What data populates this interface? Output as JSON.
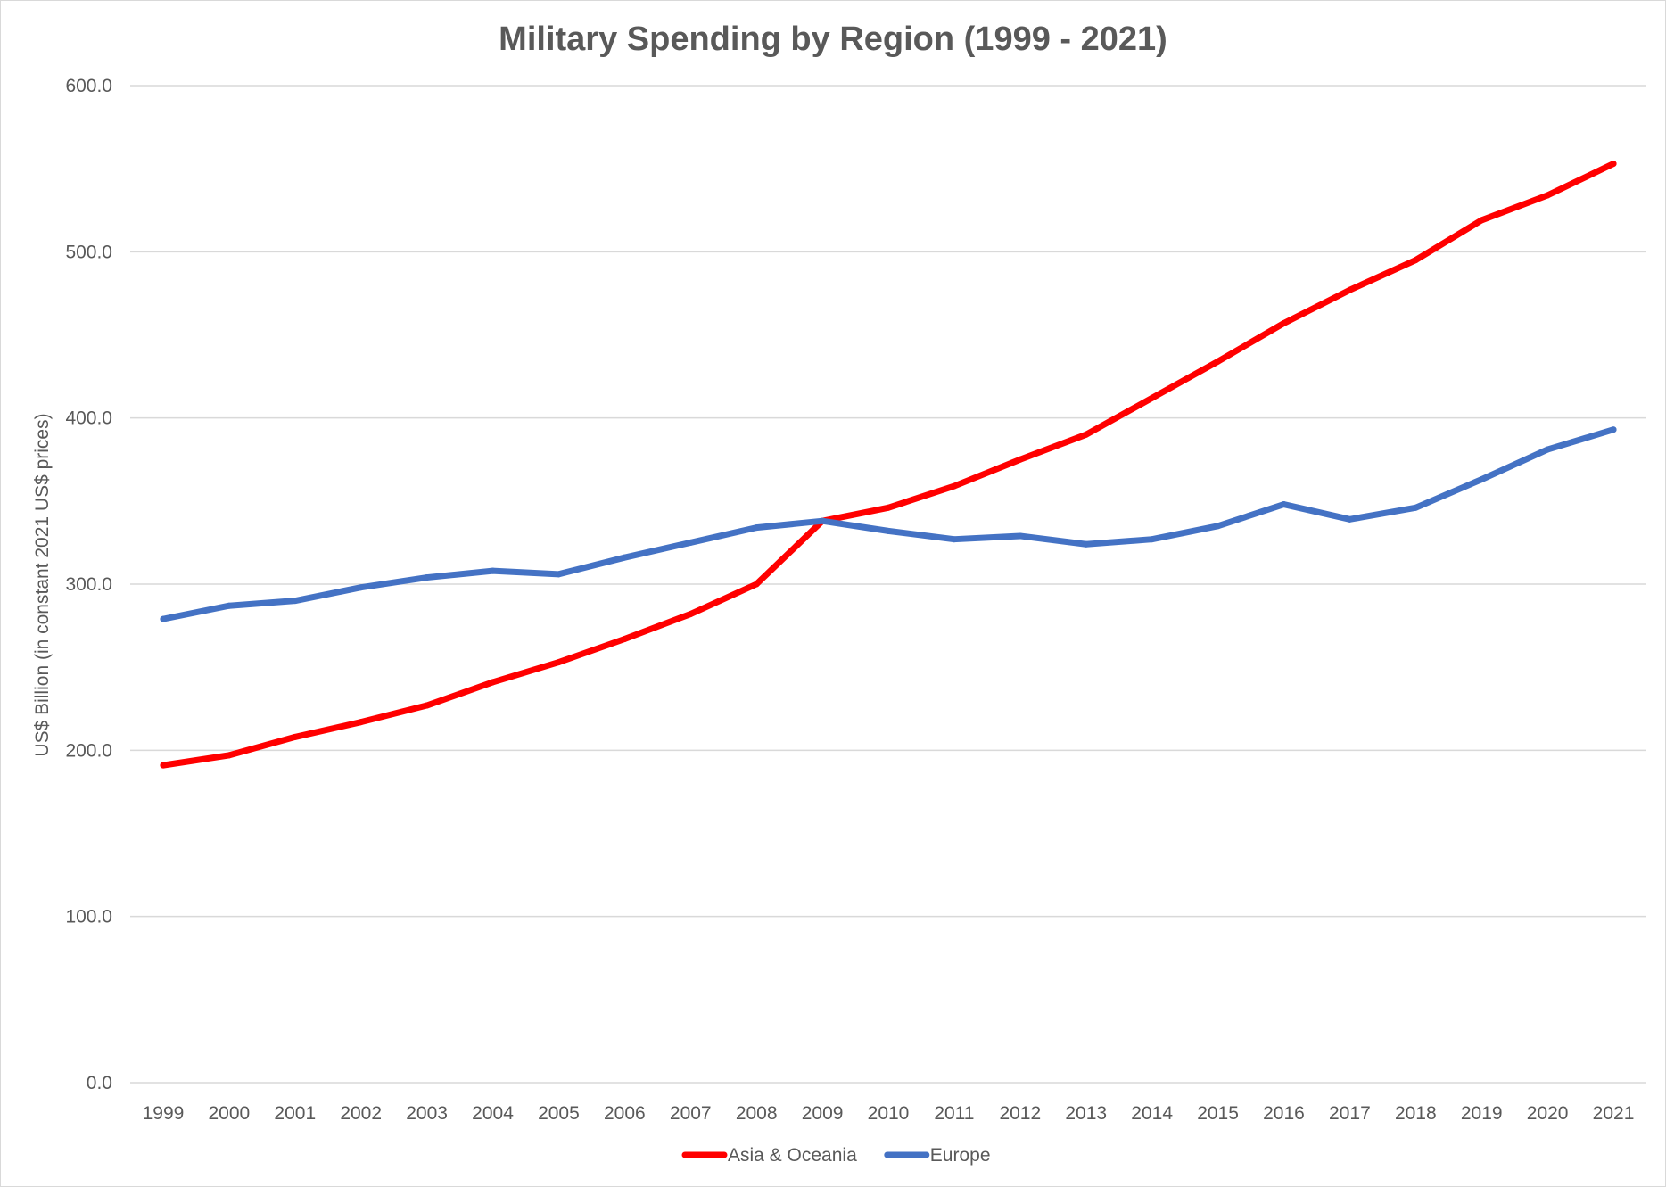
{
  "chart_data": {
    "type": "line",
    "title": "Military Spending by Region (1999 - 2021)",
    "xlabel": "",
    "ylabel": "US$ Billion (in constant 2021 US$ prices)",
    "ylim": [
      0,
      600
    ],
    "yticks": [
      "0.0",
      "100.0",
      "200.0",
      "300.0",
      "400.0",
      "500.0",
      "600.0"
    ],
    "ytick_values": [
      0,
      100,
      200,
      300,
      400,
      500,
      600
    ],
    "grid": true,
    "legend_position": "bottom",
    "categories": [
      "1999",
      "2000",
      "2001",
      "2002",
      "2003",
      "2004",
      "2005",
      "2006",
      "2007",
      "2008",
      "2009",
      "2010",
      "2011",
      "2012",
      "2013",
      "2014",
      "2015",
      "2016",
      "2017",
      "2018",
      "2019",
      "2020",
      "2021"
    ],
    "series": [
      {
        "name": "Asia & Oceania",
        "color": "#ff0000",
        "values": [
          191,
          197,
          208,
          217,
          227,
          241,
          253,
          267,
          282,
          300,
          338,
          346,
          359,
          375,
          390,
          412,
          434,
          457,
          477,
          495,
          519,
          534,
          553
        ]
      },
      {
        "name": "Europe",
        "color": "#4472c4",
        "values": [
          279,
          287,
          290,
          298,
          304,
          308,
          306,
          316,
          325,
          334,
          338,
          332,
          327,
          329,
          324,
          327,
          335,
          348,
          339,
          346,
          363,
          381,
          393
        ]
      }
    ]
  }
}
